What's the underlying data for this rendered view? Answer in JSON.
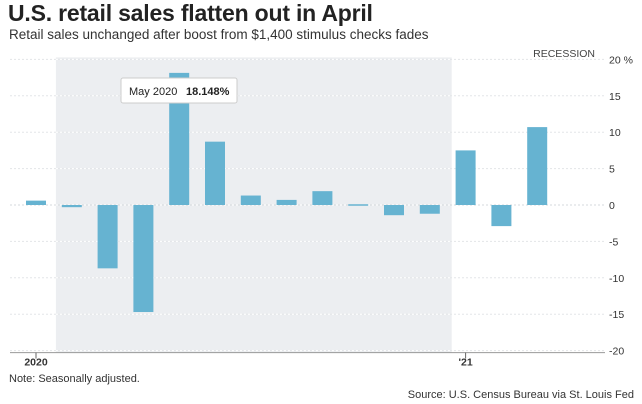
{
  "title": "U.S. retail sales flatten out in April",
  "subtitle": "Retail sales unchanged after boost from $1,400 stimulus checks fades",
  "recession_label": "RECESSION",
  "footnote": "Note: Seasonally adjusted.",
  "source": "Source: U.S. Census Bureau via St. Louis Fed",
  "tooltip": {
    "date": "May 2020",
    "value": "18.148%"
  },
  "colors": {
    "bar": "#66b3d1",
    "shade": "#eceef1",
    "grid": "#ffffff",
    "axis": "#555555"
  },
  "chart_data": {
    "type": "bar",
    "categories": [
      "2020-01",
      "2020-02",
      "2020-03",
      "2020-04",
      "2020-05",
      "2020-06",
      "2020-07",
      "2020-08",
      "2020-09",
      "2020-10",
      "2020-11",
      "2020-12",
      "2021-01",
      "2021-02",
      "2021-03"
    ],
    "values": [
      0.6,
      -0.3,
      -8.7,
      -14.7,
      18.148,
      8.7,
      1.3,
      0.7,
      1.9,
      0.1,
      -1.4,
      -1.2,
      7.5,
      -2.9,
      10.7
    ],
    "yticks": [
      20,
      15,
      10,
      5,
      0,
      -5,
      -10,
      -15,
      -20
    ],
    "ytick_labels": [
      "20 %",
      "15",
      "10",
      "5",
      "0",
      "-5",
      "-10",
      "-15",
      "-20"
    ],
    "xtick_labels": [
      {
        "index": 0,
        "label": "2020"
      },
      {
        "index": 12,
        "label": "'21"
      }
    ],
    "ylim": [
      -20,
      20
    ],
    "recession": {
      "start_index": 1,
      "end_index": 12
    }
  }
}
